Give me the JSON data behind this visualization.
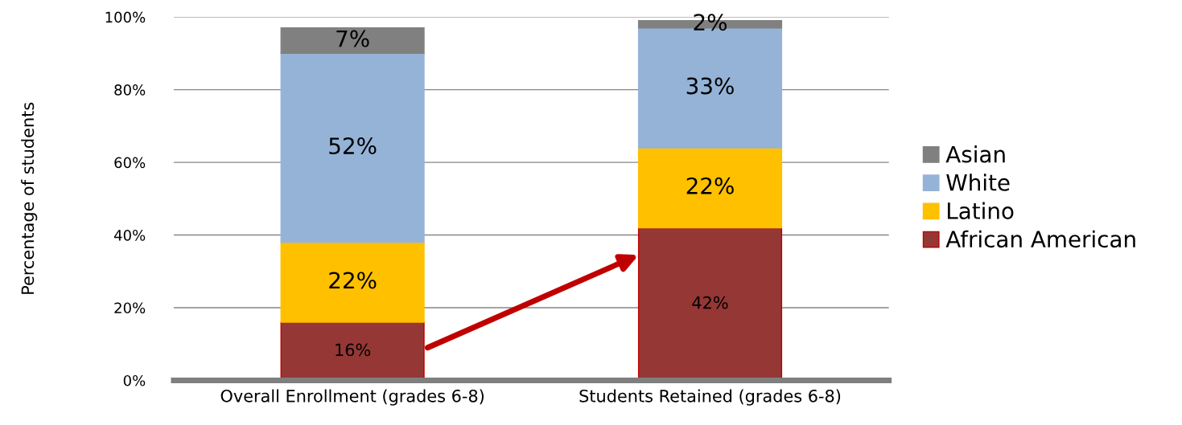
{
  "chart_data": {
    "type": "bar",
    "stacked": true,
    "ylabel": "Percentage of students",
    "categories": [
      "Overall Enrollment (grades 6-8)",
      "Students Retained (grades 6-8)"
    ],
    "series": [
      {
        "name": "African American",
        "color": "#953735",
        "values": [
          16,
          42
        ],
        "value_labels": [
          "16%",
          "42%"
        ]
      },
      {
        "name": "Latino",
        "color": "#ffc000",
        "values": [
          22,
          22
        ],
        "value_labels": [
          "22%",
          "22%"
        ]
      },
      {
        "name": "White",
        "color": "#95b3d7",
        "values": [
          52,
          33
        ],
        "value_labels": [
          "52%",
          "33%"
        ]
      },
      {
        "name": "Asian",
        "color": "#808080",
        "values": [
          7,
          2
        ],
        "value_labels": [
          "7%",
          "2%"
        ]
      }
    ],
    "ylim": [
      0,
      100
    ],
    "yticks": [
      {
        "value": 0,
        "label": "0%"
      },
      {
        "value": 20,
        "label": "20%"
      },
      {
        "value": 40,
        "label": "40%"
      },
      {
        "value": 60,
        "label": "60%"
      },
      {
        "value": 80,
        "label": "80%"
      },
      {
        "value": 100,
        "label": "100%"
      }
    ],
    "grid": "y",
    "legend": "right"
  }
}
